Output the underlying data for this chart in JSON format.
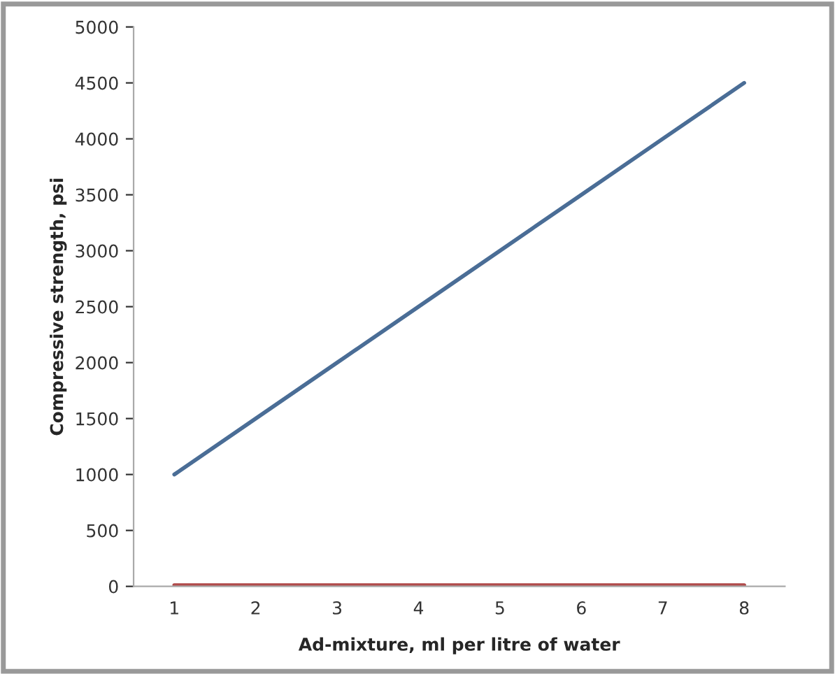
{
  "chart_data": {
    "type": "line",
    "xlabel": "Ad-mixture, ml per litre of water",
    "ylabel": "Compressive strength, psi",
    "categories": [
      "1",
      "2",
      "3",
      "4",
      "5",
      "6",
      "7",
      "8"
    ],
    "series": [
      {
        "color": "#4a6d96",
        "values": [
          1000,
          1500,
          2000,
          2500,
          3000,
          3500,
          4000,
          4500
        ]
      },
      {
        "color": "#b04a4a",
        "values": [
          10,
          10,
          10,
          10,
          10,
          10,
          10,
          10
        ]
      }
    ],
    "ylim": [
      0,
      5000
    ],
    "yticks": [
      0,
      500,
      1000,
      1500,
      2000,
      2500,
      3000,
      3500,
      4000,
      4500,
      5000
    ],
    "grid": false,
    "legend": false,
    "marker": "none",
    "line_style": "solid"
  }
}
